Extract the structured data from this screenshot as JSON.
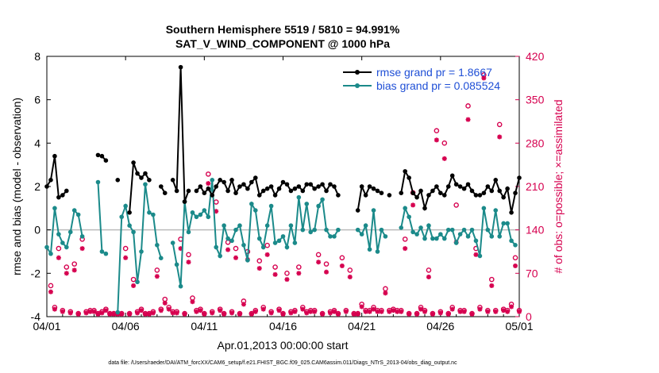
{
  "chart_data": {
    "type": "line",
    "title": "Southern Hemisphere 5519 / 5810 = 94.991%",
    "subtitle": "SAT_V_WIND_COMPONENT @ 1000 hPa",
    "xlabel": "Apr.01,2013 00:00:00 start",
    "ylabel": "rmse and bias (model - observation)",
    "y2label": "# of obs: o=possible; ×=assimilated",
    "footer": "data file: /Users/raeder/DAI/ATM_forcXX/CAM6_setup/f.e21.FHIST_BGC.f09_025.CAM6assim.011/Diags_NTrS_2013-04/obs_diag_output.nc",
    "xlim": [
      0,
      30
    ],
    "ylim": [
      -4,
      8
    ],
    "y2lim": [
      0,
      420
    ],
    "xticks": [
      0,
      5,
      10,
      15,
      20,
      25,
      30
    ],
    "xticklabels": [
      "04/01",
      "04/06",
      "04/11",
      "04/16",
      "04/21",
      "04/26",
      "05/01"
    ],
    "yticks": [
      -4,
      -2,
      0,
      2,
      4,
      6,
      8
    ],
    "y2ticks": [
      0,
      70,
      140,
      210,
      280,
      350,
      420
    ],
    "legend_position": "top-right",
    "grid": false,
    "colors": {
      "rmse": "#000000",
      "bias": "#1b8a8a",
      "obs": "#d6004f"
    },
    "series": [
      {
        "name": "rmse grand pr = 1.8667",
        "axis": "left",
        "x": [
          0.0,
          0.25,
          0.5,
          0.75,
          1.0,
          1.25,
          1.5,
          1.75,
          2.0,
          2.25,
          2.5,
          2.75,
          3.0,
          3.25,
          3.5,
          3.75,
          4.0,
          4.25,
          4.5,
          4.75,
          5.0,
          5.25,
          5.5,
          5.75,
          6.0,
          6.25,
          6.5,
          6.75,
          7.0,
          7.25,
          7.5,
          7.75,
          8.0,
          8.25,
          8.5,
          8.75,
          9.0,
          9.25,
          9.5,
          9.75,
          10.0,
          10.25,
          10.5,
          10.75,
          11.0,
          11.25,
          11.5,
          11.75,
          12.0,
          12.25,
          12.5,
          12.75,
          13.0,
          13.25,
          13.5,
          13.75,
          14.0,
          14.25,
          14.5,
          14.75,
          15.0,
          15.25,
          15.5,
          15.75,
          16.0,
          16.25,
          16.5,
          16.75,
          17.0,
          17.25,
          17.5,
          17.75,
          18.0,
          18.25,
          18.5,
          18.75,
          19.0,
          19.25,
          19.5,
          19.75,
          20.0,
          20.25,
          20.5,
          20.75,
          21.0,
          21.25,
          21.5,
          21.75,
          22.0,
          22.25,
          22.5,
          22.75,
          23.0,
          23.25,
          23.5,
          23.75,
          24.0,
          24.25,
          24.5,
          24.75,
          25.0,
          25.25,
          25.5,
          25.75,
          26.0,
          26.25,
          26.5,
          26.75,
          27.0,
          27.25,
          27.5,
          27.75,
          28.0,
          28.25,
          28.5,
          28.75,
          29.0,
          29.25,
          29.5,
          29.75,
          30.0
        ],
        "values": [
          2.0,
          2.3,
          3.4,
          1.5,
          1.6,
          1.8,
          null,
          null,
          null,
          null,
          null,
          null,
          null,
          3.45,
          3.4,
          3.2,
          null,
          null,
          2.3,
          null,
          null,
          0.8,
          3.1,
          2.6,
          2.4,
          2.6,
          2.3,
          null,
          null,
          2.0,
          1.7,
          null,
          2.3,
          1.8,
          7.5,
          1.3,
          1.8,
          null,
          1.8,
          2.0,
          1.7,
          1.9,
          1.6,
          2.0,
          2.3,
          2.2,
          1.8,
          2.3,
          1.7,
          2.0,
          2.1,
          1.9,
          2.2,
          2.4,
          1.6,
          1.8,
          1.9,
          2.0,
          1.6,
          1.9,
          2.2,
          2.1,
          1.8,
          1.9,
          2.0,
          1.8,
          2.1,
          2.1,
          1.9,
          2.0,
          2.1,
          1.8,
          2.1,
          2.0,
          1.6,
          null,
          null,
          null,
          null,
          0.9,
          2.0,
          1.6,
          2.0,
          1.9,
          1.8,
          1.7,
          null,
          1.6,
          null,
          null,
          1.7,
          2.7,
          2.4,
          1.7,
          1.5,
          1.8,
          1.0,
          1.6,
          1.8,
          2.0,
          1.7,
          1.6,
          2.0,
          2.5,
          2.1,
          2.0,
          1.9,
          2.1,
          1.8,
          1.6,
          1.6,
          1.7,
          2.0,
          1.8,
          2.3,
          1.8,
          1.5,
          1.9,
          0.8,
          1.7,
          2.4
        ]
      },
      {
        "name": "bias grand pr = 0.085524",
        "axis": "left",
        "x": [
          0.0,
          0.25,
          0.5,
          0.75,
          1.0,
          1.25,
          1.5,
          1.75,
          2.0,
          2.25,
          2.5,
          2.75,
          3.0,
          3.25,
          3.5,
          3.75,
          4.0,
          4.25,
          4.5,
          4.75,
          5.0,
          5.25,
          5.5,
          5.75,
          6.0,
          6.25,
          6.5,
          6.75,
          7.0,
          7.25,
          7.5,
          7.75,
          8.0,
          8.25,
          8.5,
          8.75,
          9.0,
          9.25,
          9.5,
          9.75,
          10.0,
          10.25,
          10.5,
          10.75,
          11.0,
          11.25,
          11.5,
          11.75,
          12.0,
          12.25,
          12.5,
          12.75,
          13.0,
          13.25,
          13.5,
          13.75,
          14.0,
          14.25,
          14.5,
          14.75,
          15.0,
          15.25,
          15.5,
          15.75,
          16.0,
          16.25,
          16.5,
          16.75,
          17.0,
          17.25,
          17.5,
          17.75,
          18.0,
          18.25,
          18.5,
          18.75,
          19.0,
          19.25,
          19.5,
          19.75,
          20.0,
          20.25,
          20.5,
          20.75,
          21.0,
          21.25,
          21.5,
          21.75,
          22.0,
          22.25,
          22.5,
          22.75,
          23.0,
          23.25,
          23.5,
          23.75,
          24.0,
          24.25,
          24.5,
          24.75,
          25.0,
          25.25,
          25.5,
          25.75,
          26.0,
          26.25,
          26.5,
          26.75,
          27.0,
          27.25,
          27.5,
          27.75,
          28.0,
          28.25,
          28.5,
          28.75,
          29.0,
          29.25,
          29.5,
          29.75,
          30.0
        ],
        "values": [
          -0.8,
          -1.1,
          1.0,
          -0.2,
          -0.6,
          -0.8,
          -0.1,
          0.9,
          0.7,
          -0.3,
          null,
          null,
          null,
          2.2,
          -1.0,
          -1.1,
          null,
          null,
          -3.8,
          0.6,
          1.1,
          0.2,
          -0.1,
          -2.4,
          -1.0,
          2.1,
          0.8,
          0.7,
          -0.7,
          -1.3,
          null,
          null,
          -0.6,
          -1.6,
          -2.6,
          1.3,
          -0.1,
          0.8,
          0.6,
          0.7,
          0.9,
          0.6,
          2.3,
          -0.8,
          -1.2,
          0.2,
          -0.4,
          -0.5,
          0.0,
          0.2,
          -0.7,
          -1.4,
          1.2,
          0.9,
          -0.4,
          -0.8,
          0.2,
          1.1,
          -0.6,
          -0.5,
          -0.3,
          -0.8,
          0.2,
          -0.6,
          1.5,
          0.0,
          1.2,
          -0.1,
          0.0,
          1.1,
          1.4,
          0.0,
          -0.3,
          -0.3,
          0.0,
          null,
          null,
          null,
          null,
          0.0,
          -0.2,
          0.2,
          -0.9,
          0.9,
          -1.0,
          0.0,
          -0.3,
          null,
          null,
          null,
          0.1,
          1.0,
          0.6,
          -0.1,
          -0.2,
          0.1,
          -0.4,
          0.2,
          -0.4,
          -0.4,
          -0.2,
          -0.4,
          0.0,
          0.0,
          -0.6,
          -0.2,
          0.0,
          -0.3,
          0.0,
          -0.5,
          -1.2,
          1.0,
          0.0,
          -0.3,
          0.9,
          -0.3,
          0.3,
          0.3,
          -0.5,
          -0.7,
          null
        ]
      },
      {
        "name": "possible",
        "axis": "right",
        "marker": "o",
        "x": [
          0.25,
          0.5,
          0.75,
          1.0,
          1.25,
          1.5,
          1.75,
          2.0,
          2.25,
          2.5,
          2.75,
          3.0,
          3.25,
          3.5,
          3.75,
          4.0,
          4.25,
          4.5,
          4.75,
          5.0,
          5.25,
          5.5,
          5.75,
          6.0,
          6.25,
          6.5,
          6.75,
          7.0,
          7.25,
          7.5,
          7.75,
          8.0,
          8.25,
          8.5,
          8.75,
          9.0,
          9.25,
          9.5,
          9.75,
          10.0,
          10.25,
          10.5,
          10.75,
          11.0,
          11.25,
          11.5,
          11.75,
          12.0,
          12.25,
          12.5,
          12.75,
          13.0,
          13.25,
          13.5,
          13.75,
          14.0,
          14.25,
          14.5,
          14.75,
          15.0,
          15.25,
          15.5,
          15.75,
          16.0,
          16.25,
          16.5,
          16.75,
          17.0,
          17.25,
          17.5,
          17.75,
          18.0,
          18.25,
          18.5,
          18.75,
          19.0,
          19.25,
          19.5,
          19.75,
          20.0,
          20.25,
          20.5,
          20.75,
          21.0,
          21.25,
          21.5,
          21.75,
          22.0,
          22.25,
          22.5,
          22.75,
          23.0,
          23.25,
          23.5,
          23.75,
          24.0,
          24.25,
          24.5,
          24.75,
          25.0,
          25.25,
          25.5,
          25.75,
          26.0,
          26.25,
          26.5,
          26.75,
          27.0,
          27.25,
          27.5,
          27.75,
          28.0,
          28.25,
          28.5,
          28.75,
          29.0,
          29.25,
          29.5,
          29.75,
          30.0
        ],
        "values": [
          50,
          15,
          110,
          10,
          80,
          8,
          85,
          5,
          125,
          8,
          10,
          10,
          5,
          8,
          12,
          5,
          5,
          5,
          5,
          110,
          5,
          60,
          8,
          12,
          5,
          5,
          8,
          75,
          12,
          28,
          15,
          8,
          8,
          125,
          5,
          100,
          30,
          10,
          12,
          5,
          230,
          8,
          185,
          12,
          5,
          120,
          8,
          110,
          5,
          25,
          105,
          5,
          10,
          90,
          15,
          115,
          8,
          80,
          12,
          5,
          70,
          8,
          10,
          80,
          15,
          8,
          10,
          10,
          100,
          5,
          85,
          8,
          10,
          5,
          95,
          10,
          75,
          5,
          5,
          20,
          10,
          10,
          15,
          10,
          10,
          45,
          10,
          12,
          10,
          10,
          125,
          5,
          200,
          5,
          15,
          10,
          75,
          5,
          300,
          8,
          280,
          5,
          15,
          180,
          10,
          10,
          340,
          5,
          110,
          15,
          390,
          10,
          60,
          10,
          310,
          12,
          10,
          20,
          95,
          10
        ]
      },
      {
        "name": "assimilated",
        "axis": "right",
        "marker": "*",
        "x": [
          0.25,
          0.5,
          0.75,
          1.0,
          1.25,
          1.5,
          1.75,
          2.0,
          2.25,
          2.5,
          2.75,
          3.0,
          3.25,
          3.5,
          3.75,
          4.0,
          4.25,
          4.5,
          4.75,
          5.0,
          5.25,
          5.5,
          5.75,
          6.0,
          6.25,
          6.5,
          6.75,
          7.0,
          7.25,
          7.5,
          7.75,
          8.0,
          8.25,
          8.5,
          8.75,
          9.0,
          9.25,
          9.5,
          9.75,
          10.0,
          10.25,
          10.5,
          10.75,
          11.0,
          11.25,
          11.5,
          11.75,
          12.0,
          12.25,
          12.5,
          12.75,
          13.0,
          13.25,
          13.5,
          13.75,
          14.0,
          14.25,
          14.5,
          14.75,
          15.0,
          15.25,
          15.5,
          15.75,
          16.0,
          16.25,
          16.5,
          16.75,
          17.0,
          17.25,
          17.5,
          17.75,
          18.0,
          18.25,
          18.5,
          18.75,
          19.0,
          19.25,
          19.5,
          19.75,
          20.0,
          20.25,
          20.5,
          20.75,
          21.0,
          21.25,
          21.5,
          21.75,
          22.0,
          22.25,
          22.5,
          22.75,
          23.0,
          23.25,
          23.5,
          23.75,
          24.0,
          24.25,
          24.5,
          24.75,
          25.0,
          25.25,
          25.5,
          25.75,
          26.0,
          26.25,
          26.5,
          26.75,
          27.0,
          27.25,
          27.5,
          27.75,
          28.0,
          28.25,
          28.5,
          28.75,
          29.0,
          29.25,
          29.5,
          29.75,
          30.0
        ],
        "values": [
          40,
          12,
          95,
          8,
          70,
          6,
          75,
          4,
          110,
          6,
          8,
          8,
          4,
          6,
          10,
          4,
          4,
          4,
          4,
          95,
          4,
          50,
          6,
          10,
          4,
          4,
          6,
          65,
          10,
          22,
          12,
          6,
          6,
          110,
          4,
          88,
          24,
          8,
          10,
          4,
          215,
          6,
          170,
          10,
          4,
          108,
          6,
          95,
          4,
          20,
          92,
          4,
          8,
          78,
          12,
          100,
          6,
          68,
          10,
          4,
          60,
          6,
          8,
          70,
          12,
          6,
          8,
          8,
          88,
          4,
          72,
          6,
          8,
          4,
          82,
          8,
          64,
          4,
          4,
          16,
          8,
          8,
          12,
          8,
          8,
          38,
          8,
          10,
          8,
          8,
          110,
          4,
          180,
          4,
          12,
          8,
          64,
          4,
          285,
          6,
          255,
          4,
          12,
          120,
          8,
          8,
          318,
          4,
          100,
          12,
          385,
          8,
          50,
          8,
          290,
          10,
          8,
          16,
          82,
          8
        ]
      }
    ]
  }
}
